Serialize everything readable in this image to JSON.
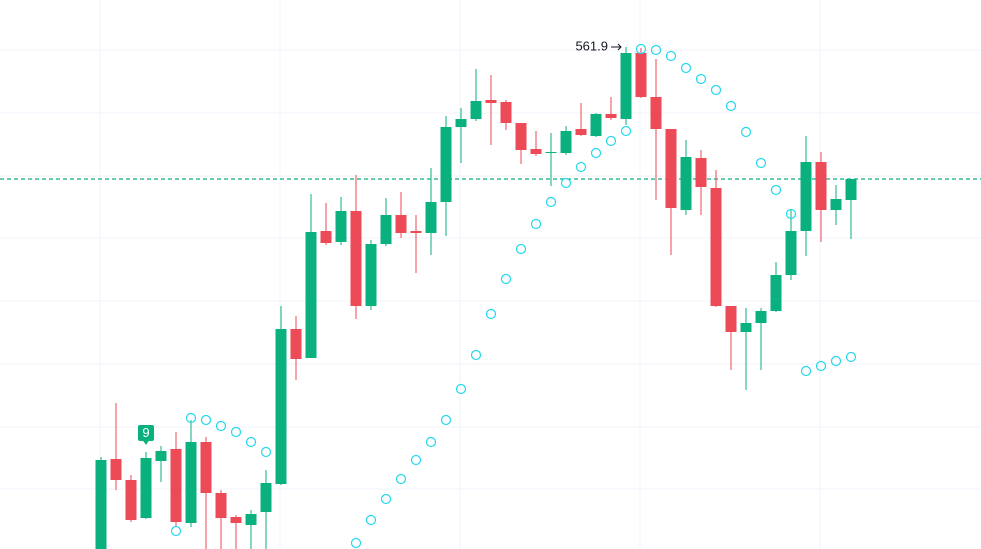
{
  "chart_data": {
    "type": "candlestick",
    "open": [
      511.7,
      520.7,
      518.6,
      514.8,
      520.5,
      521.7,
      514.3,
      522.4,
      517.3,
      514.9,
      514.1,
      515.4,
      518.2,
      533.7,
      530.8,
      543.5,
      542.4,
      545.5,
      536.0,
      542.2,
      545.1,
      543.5,
      543.3,
      546.4,
      553.9,
      554.7,
      556.6,
      556.4,
      554.3,
      551.7,
      551.3,
      551.3,
      553.7,
      553.0,
      555.2,
      554.7,
      561.3,
      556.9,
      553.7,
      545.6,
      550.8,
      547.8,
      536.0,
      533.4,
      534.3,
      535.5,
      539.1,
      543.5,
      550.4,
      545.6,
      546.6
    ],
    "high": [
      520.9,
      526.3,
      519.1,
      521.4,
      522.0,
      523.4,
      524.6,
      522.9,
      517.6,
      515.1,
      515.6,
      519.6,
      536.0,
      535.0,
      547.2,
      546.3,
      546.9,
      549.1,
      542.6,
      546.8,
      547.4,
      545.1,
      549.8,
      555.0,
      555.8,
      559.7,
      559.1,
      556.6,
      554.3,
      553.5,
      553.3,
      554.0,
      556.3,
      555.3,
      556.9,
      561.9,
      561.8,
      560.7,
      553.7,
      552.6,
      551.6,
      549.6,
      536.0,
      535.8,
      535.8,
      540.4,
      545.6,
      553.0,
      551.4,
      548.1,
      548.7
    ],
    "low": [
      511.0,
      517.6,
      514.4,
      514.7,
      518.4,
      513.9,
      513.9,
      511.0,
      511.0,
      511.0,
      511.0,
      511.0,
      518.1,
      528.6,
      530.8,
      542.1,
      542.1,
      534.7,
      535.6,
      542.0,
      542.8,
      539.3,
      541.1,
      543.0,
      550.3,
      554.5,
      552.1,
      553.6,
      550.2,
      551.0,
      548.0,
      551.1,
      553.0,
      552.9,
      554.6,
      554.1,
      556.8,
      546.6,
      541.1,
      545.1,
      545.1,
      535.9,
      529.6,
      527.6,
      529.6,
      535.4,
      538.6,
      541.0,
      542.4,
      544.1,
      542.7
    ],
    "close": [
      520.6,
      518.6,
      514.6,
      520.8,
      521.5,
      514.4,
      522.4,
      517.3,
      514.8,
      514.3,
      515.2,
      518.3,
      533.7,
      530.7,
      543.4,
      542.3,
      545.5,
      536.0,
      542.2,
      545.1,
      543.3,
      543.3,
      546.4,
      553.9,
      554.7,
      556.5,
      556.3,
      554.3,
      551.6,
      551.2,
      551.4,
      553.5,
      553.1,
      555.2,
      554.8,
      561.3,
      556.9,
      553.7,
      545.8,
      550.9,
      547.9,
      536.0,
      533.4,
      534.3,
      535.5,
      539.1,
      543.5,
      550.4,
      545.6,
      546.7,
      548.7
    ],
    "sar": [
      null,
      null,
      null,
      null,
      null,
      513.5,
      524.8,
      524.6,
      524.0,
      523.4,
      522.4,
      521.4,
      null,
      null,
      null,
      null,
      null,
      512.3,
      514.6,
      516.7,
      518.7,
      520.6,
      522.4,
      524.6,
      527.7,
      531.1,
      535.2,
      538.7,
      541.7,
      544.2,
      546.4,
      548.3,
      549.9,
      551.3,
      552.5,
      553.5,
      561.7,
      561.6,
      561.0,
      559.8,
      558.7,
      557.6,
      556.0,
      553.4,
      550.3,
      547.6,
      545.2,
      529.5,
      530.0,
      530.5,
      530.9
    ],
    "annotations": [
      {
        "text": "9",
        "index": 3
      }
    ],
    "ylim": [
      511.7,
      566.6
    ],
    "up_color": "#0bb07f",
    "down_color": "#ec4a56",
    "sar_color": "#22d8ee",
    "last_price_line": true,
    "grid": true
  }
}
